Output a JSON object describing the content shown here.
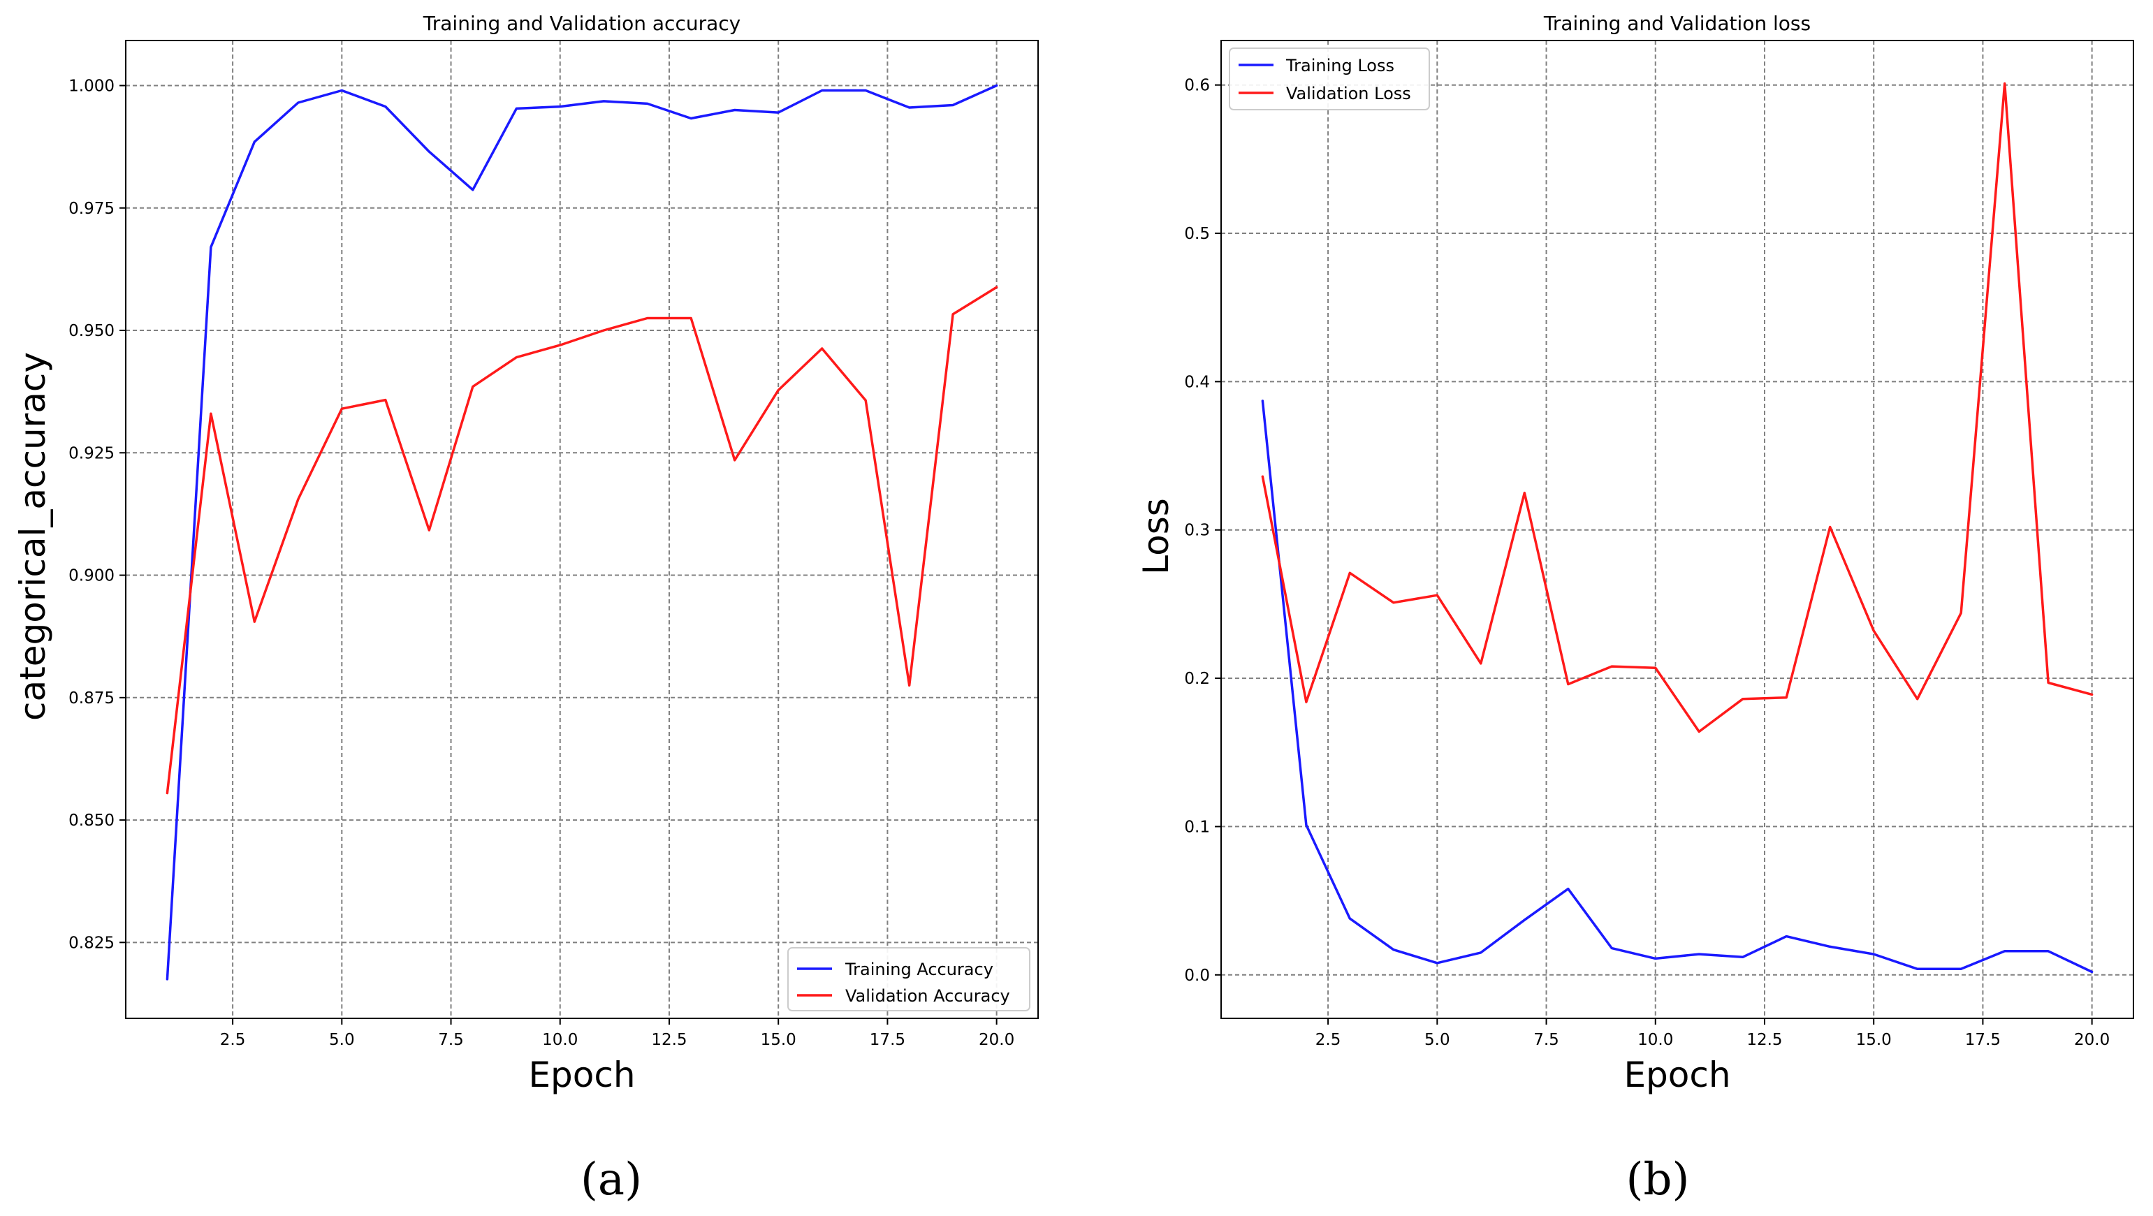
{
  "chart_data": [
    {
      "type": "line",
      "panel_label": "(a)",
      "title": "Training and Validation accuracy",
      "xlabel": "Epoch",
      "ylabel": "categorical_accuracy",
      "xticks": [
        "2.5",
        "5.0",
        "7.5",
        "10.0",
        "12.5",
        "15.0",
        "17.5",
        "20.0"
      ],
      "yticks": [
        "0.825",
        "0.850",
        "0.875",
        "0.900",
        "0.925",
        "0.950",
        "0.975",
        "1.000"
      ],
      "xlim": [
        0.05,
        20.95
      ],
      "ylim": [
        0.8095,
        1.0092
      ],
      "grid": true,
      "legend_position": "lower-right",
      "x": [
        1,
        2,
        3,
        4,
        5,
        6,
        7,
        8,
        9,
        10,
        11,
        12,
        13,
        14,
        15,
        16,
        17,
        18,
        19,
        20
      ],
      "series": [
        {
          "name": "Training Accuracy",
          "color": "#1a1aff",
          "values": [
            0.8175,
            0.967,
            0.9885,
            0.9965,
            0.999,
            0.9957,
            0.9865,
            0.9787,
            0.9953,
            0.9957,
            0.9968,
            0.9963,
            0.9933,
            0.995,
            0.9945,
            0.999,
            0.999,
            0.9955,
            0.996,
            1.0
          ]
        },
        {
          "name": "Validation Accuracy",
          "color": "#ff1a1a",
          "values": [
            0.8555,
            0.933,
            0.8905,
            0.9155,
            0.934,
            0.9358,
            0.9092,
            0.9385,
            0.9445,
            0.947,
            0.95,
            0.9525,
            0.9525,
            0.9235,
            0.9378,
            0.9463,
            0.9357,
            0.8775,
            0.9533,
            0.9588
          ]
        }
      ]
    },
    {
      "type": "line",
      "panel_label": "(b)",
      "title": "Training and Validation loss",
      "xlabel": "Epoch",
      "ylabel": "Loss",
      "xticks": [
        "2.5",
        "5.0",
        "7.5",
        "10.0",
        "12.5",
        "15.0",
        "17.5",
        "20.0"
      ],
      "yticks": [
        "0.0",
        "0.1",
        "0.2",
        "0.3",
        "0.4",
        "0.5",
        "0.6"
      ],
      "xlim": [
        0.05,
        20.95
      ],
      "ylim": [
        -0.0293,
        0.63
      ],
      "grid": true,
      "legend_position": "upper-left",
      "x": [
        1,
        2,
        3,
        4,
        5,
        6,
        7,
        8,
        9,
        10,
        11,
        12,
        13,
        14,
        15,
        16,
        17,
        18,
        19,
        20
      ],
      "series": [
        {
          "name": "Training Loss",
          "color": "#1a1aff",
          "values": [
            0.387,
            0.101,
            0.038,
            0.017,
            0.008,
            0.015,
            0.037,
            0.058,
            0.018,
            0.011,
            0.014,
            0.012,
            0.026,
            0.019,
            0.014,
            0.004,
            0.004,
            0.016,
            0.016,
            0.002
          ]
        },
        {
          "name": "Validation Loss",
          "color": "#ff1a1a",
          "values": [
            0.336,
            0.184,
            0.271,
            0.251,
            0.256,
            0.21,
            0.325,
            0.196,
            0.208,
            0.207,
            0.164,
            0.186,
            0.187,
            0.302,
            0.232,
            0.186,
            0.244,
            0.601,
            0.197,
            0.189
          ]
        }
      ]
    }
  ]
}
